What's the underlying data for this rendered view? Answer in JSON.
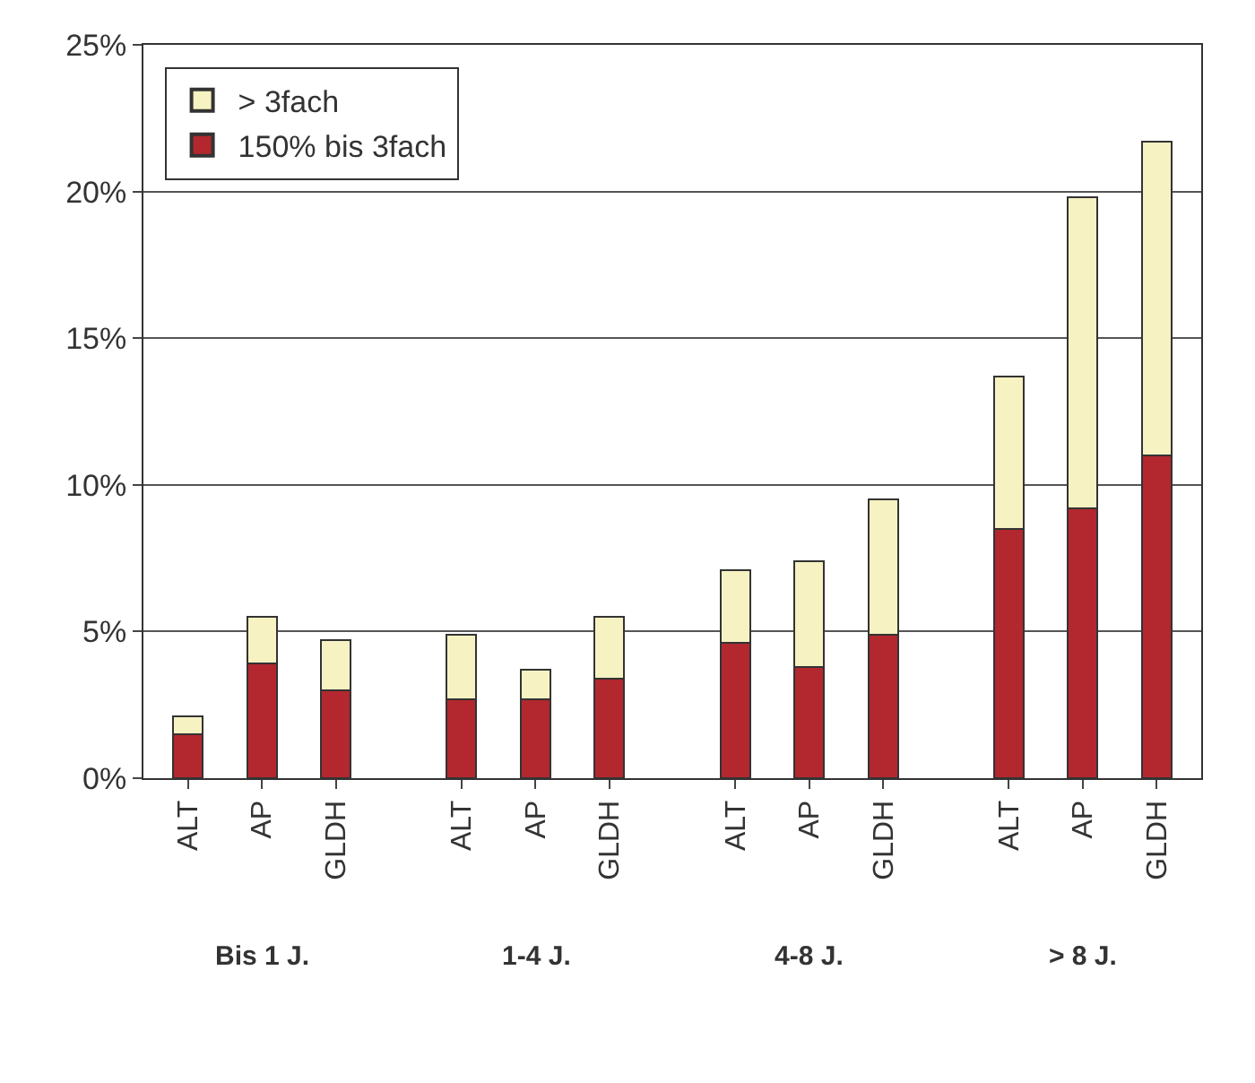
{
  "chart_data": {
    "type": "bar",
    "stacked": true,
    "categories": [
      "ALT",
      "AP",
      "GLDH",
      "ALT",
      "AP",
      "GLDH",
      "ALT",
      "AP",
      "GLDH",
      "ALT",
      "AP",
      "GLDH"
    ],
    "series": [
      {
        "name": "150% bis 3fach",
        "color": "#b2282e",
        "values": [
          1.5,
          3.9,
          3.0,
          2.7,
          2.7,
          3.4,
          4.6,
          3.8,
          4.9,
          8.5,
          9.2,
          11.0
        ]
      },
      {
        "name": "> 3fach",
        "color": "#f6f2c2",
        "values": [
          0.6,
          1.6,
          1.7,
          2.2,
          1.0,
          2.1,
          2.5,
          3.6,
          4.6,
          5.2,
          10.6,
          10.7
        ]
      }
    ],
    "annotations": [
      "Bis 1 J.",
      "1-4 J.",
      "4-8 J.",
      "> 8 J."
    ],
    "ylim": [
      0,
      25
    ],
    "yticks": [
      {
        "value": 0,
        "label": "0%"
      },
      {
        "value": 5,
        "label": "5%"
      },
      {
        "value": 10,
        "label": "10%"
      },
      {
        "value": 15,
        "label": "15%"
      },
      {
        "value": 20,
        "label": "20%"
      },
      {
        "value": 25,
        "label": "25%"
      }
    ],
    "grid": "y",
    "legend": "top left"
  }
}
